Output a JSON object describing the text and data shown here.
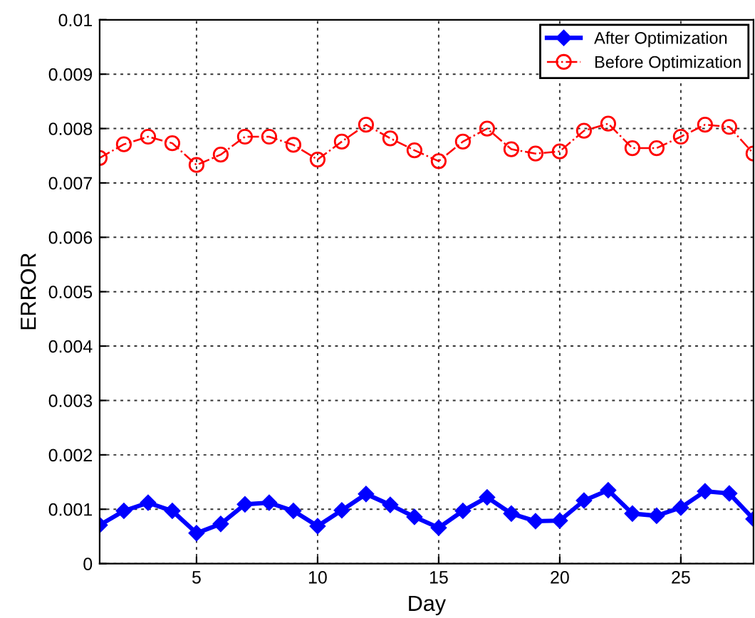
{
  "chart_data": {
    "type": "line",
    "xlabel": "Day",
    "ylabel": "ERROR",
    "x": [
      1,
      2,
      3,
      4,
      5,
      6,
      7,
      8,
      9,
      10,
      11,
      12,
      13,
      14,
      15,
      16,
      17,
      18,
      19,
      20,
      21,
      22,
      23,
      24,
      25,
      26,
      27,
      28
    ],
    "series": [
      {
        "name": "After Optimization",
        "color": "#0000ff",
        "marker": "diamond",
        "line_style": "solid",
        "values": [
          0.00071,
          0.00097,
          0.00112,
          0.00097,
          0.00056,
          0.00073,
          0.00109,
          0.00112,
          0.00097,
          0.00069,
          0.00098,
          0.00128,
          0.00108,
          0.00086,
          0.00066,
          0.00097,
          0.00122,
          0.00092,
          0.00078,
          0.00079,
          0.00116,
          0.00135,
          0.00092,
          0.00088,
          0.00103,
          0.00133,
          0.00129,
          0.00082
        ]
      },
      {
        "name": "Before Optimization",
        "color": "#ff0000",
        "marker": "circle",
        "line_style": "dashed",
        "values": [
          0.00746,
          0.00771,
          0.00785,
          0.00773,
          0.00733,
          0.00752,
          0.00785,
          0.00785,
          0.0077,
          0.00743,
          0.00776,
          0.00807,
          0.00782,
          0.0076,
          0.0074,
          0.00776,
          0.008,
          0.00762,
          0.00754,
          0.00758,
          0.00796,
          0.00809,
          0.00764,
          0.00764,
          0.00785,
          0.00807,
          0.00803,
          0.00754
        ]
      }
    ],
    "xlim": [
      1,
      28
    ],
    "xticks": [
      5,
      10,
      15,
      20,
      25
    ],
    "ylim": [
      0,
      0.01
    ],
    "yticks": [
      0,
      0.001,
      0.002,
      0.003,
      0.004,
      0.005,
      0.006,
      0.007,
      0.008,
      0.009,
      0.01
    ],
    "grid": true,
    "legend": "top right"
  }
}
